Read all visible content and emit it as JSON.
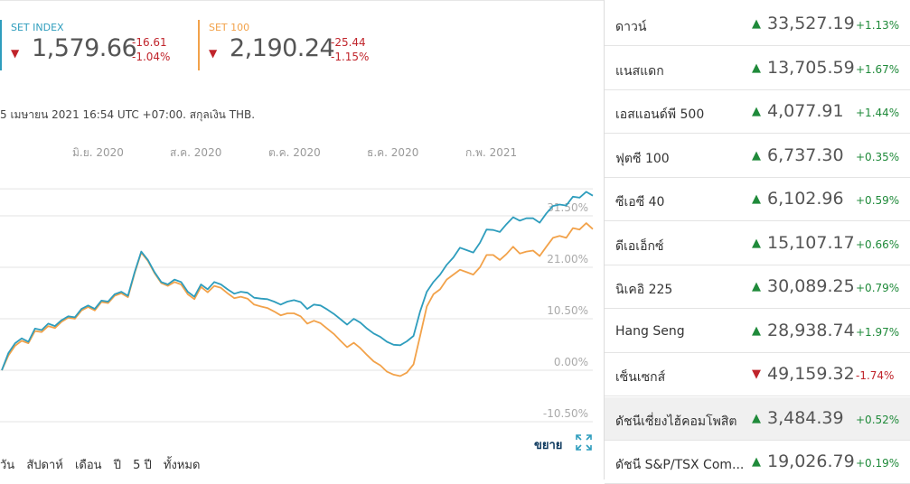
{
  "colors": {
    "set_index": "#2e9dbd",
    "set100": "#f2a24a",
    "up": "#1f8a3a",
    "down": "#c0242b"
  },
  "indices": [
    {
      "name": "SET INDEX",
      "value": "1,579.66",
      "change": "-16.61",
      "change_pct": "-1.04%"
    },
    {
      "name": "SET 100",
      "value": "2,190.24",
      "change": "-25.44",
      "change_pct": "-1.15%"
    }
  ],
  "note": "5 เมษายน 2021 16:54 UTC +07:00. สกุลเงิน THB.",
  "expand_label": "ขยาย",
  "expand_icon": "expand-arrows-icon",
  "ranges": [
    "วัน",
    "สัปดาห์",
    "เดือน",
    "ปี",
    "5 ปี",
    "ทั้งหมด"
  ],
  "chart_data": {
    "type": "line",
    "x_tick_labels": [
      "มิ.ย. 2020",
      "ส.ค. 2020",
      "ต.ค. 2020",
      "ธ.ค. 2020",
      "ก.พ. 2021"
    ],
    "y_tick_labels": [
      "31.50%",
      "21.00%",
      "10.50%",
      "0.00%",
      "-10.50%"
    ],
    "ylim": [
      -10.5,
      37
    ],
    "series": [
      {
        "name": "SET INDEX",
        "color": "#2e9dbd",
        "values": [
          0,
          3.5,
          5.5,
          6.5,
          5.8,
          8.5,
          8.2,
          9.5,
          9,
          10.2,
          11,
          10.8,
          12.5,
          13.2,
          12.5,
          14.2,
          14,
          15.5,
          16,
          15.2,
          20,
          24.2,
          22.5,
          20,
          18,
          17.5,
          18.5,
          18,
          16,
          15,
          17.5,
          16.5,
          18,
          17.5,
          16.5,
          15.6,
          16,
          15.8,
          14.8,
          14.6,
          14.5,
          14,
          13.4,
          14,
          14.3,
          13.9,
          12.5,
          13.4,
          13.2,
          12.4,
          11.5,
          10.4,
          9.3,
          10.5,
          9.7,
          8.5,
          7.5,
          6.8,
          5.8,
          5.2,
          5.1,
          5.9,
          7,
          12,
          16,
          18,
          19.5,
          21.5,
          23,
          25,
          24.5,
          24,
          26,
          28.7,
          28.6,
          28.2,
          29.8,
          31.2,
          30.5,
          31,
          31,
          30.1,
          32,
          33.5,
          33.8,
          33.6,
          35.4,
          35.2,
          36.4,
          35.6
        ]
      },
      {
        "name": "SET 100",
        "color": "#f2a24a",
        "values": [
          0,
          3,
          5,
          6,
          5.5,
          8,
          7.8,
          9,
          8.6,
          9.9,
          10.7,
          10.5,
          12.2,
          12.9,
          12.2,
          13.9,
          13.7,
          15.2,
          15.7,
          14.9,
          19.8,
          24,
          22.3,
          19.8,
          17.8,
          17.2,
          18,
          17.5,
          15.5,
          14.5,
          17,
          15.9,
          17.2,
          16.8,
          15.7,
          14.7,
          15,
          14.6,
          13.4,
          13,
          12.7,
          12,
          11.2,
          11.6,
          11.6,
          11,
          9.5,
          10.1,
          9.6,
          8.5,
          7.4,
          6,
          4.7,
          5.6,
          4.5,
          3.1,
          1.8,
          1,
          -0.3,
          -0.9,
          -1.2,
          -0.5,
          1.2,
          7,
          13,
          15.5,
          16.5,
          18.5,
          19.5,
          20.5,
          20,
          19.5,
          21,
          23.5,
          23.5,
          22.5,
          23.7,
          25.2,
          23.8,
          24.2,
          24.4,
          23.3,
          25.2,
          27,
          27.4,
          27,
          29,
          28.7,
          30,
          28.8
        ]
      }
    ]
  },
  "watchlist": [
    {
      "name": "ดาวน์",
      "value": "33,527.19",
      "change_pct": "+1.13%",
      "dir": "up"
    },
    {
      "name": "แนสแดก",
      "value": "13,705.59",
      "change_pct": "+1.67%",
      "dir": "up"
    },
    {
      "name": "เอสแอนด์พี 500",
      "value": "4,077.91",
      "change_pct": "+1.44%",
      "dir": "up"
    },
    {
      "name": "ฟุตซี 100",
      "value": "6,737.30",
      "change_pct": "+0.35%",
      "dir": "up"
    },
    {
      "name": "ซีเอซี 40",
      "value": "6,102.96",
      "change_pct": "+0.59%",
      "dir": "up"
    },
    {
      "name": "ดีเอเอ็กซ์",
      "value": "15,107.17",
      "change_pct": "+0.66%",
      "dir": "up"
    },
    {
      "name": "นิเคอิ 225",
      "value": "30,089.25",
      "change_pct": "+0.79%",
      "dir": "up"
    },
    {
      "name": "Hang Seng",
      "value": "28,938.74",
      "change_pct": "+1.97%",
      "dir": "up"
    },
    {
      "name": "เซ็นเซกส์",
      "value": "49,159.32",
      "change_pct": "-1.74%",
      "dir": "down"
    },
    {
      "name": "ดัชนีเซี่ยงไฮ้คอมโพสิต",
      "value": "3,484.39",
      "change_pct": "+0.52%",
      "dir": "up",
      "highlight": true
    },
    {
      "name": "ดัชนี S&P/TSX Com...",
      "value": "19,026.79",
      "change_pct": "+0.19%",
      "dir": "up"
    }
  ]
}
